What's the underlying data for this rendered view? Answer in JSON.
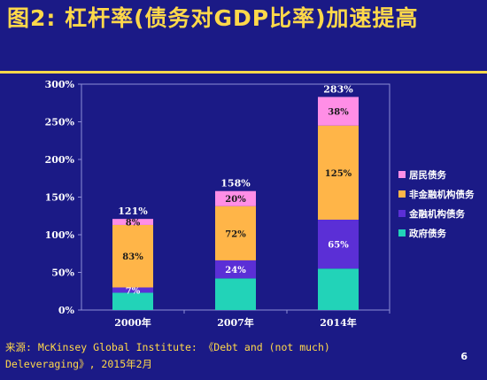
{
  "slide": {
    "title": "图2:  杠杆率(债务对GDP比率)加速提高",
    "footnote_line1": "来源: McKinsey Global Institute: 《Debt and (not much)",
    "footnote_line2": "Deleveraging》, 2015年2月",
    "page_number": "6"
  },
  "chart_data": {
    "type": "bar",
    "stacked": true,
    "title": "",
    "xlabel": "",
    "ylabel": "",
    "categories": [
      "2000年",
      "2007年",
      "2014年"
    ],
    "ylim": [
      0,
      300
    ],
    "yticks": [
      "0%",
      "50%",
      "100%",
      "150%",
      "200%",
      "250%",
      "300%"
    ],
    "totals": [
      "121%",
      "158%",
      "283%"
    ],
    "series": [
      {
        "name": "政府债务",
        "color": "#22d3b8",
        "values": [
          23,
          42,
          55
        ],
        "labels": [
          "",
          "",
          ""
        ]
      },
      {
        "name": "金融机构债务",
        "color": "#5b2fd6",
        "values": [
          7,
          24,
          65
        ],
        "labels": [
          "7%",
          "24%",
          "65%"
        ]
      },
      {
        "name": "非金融机构债务",
        "color": "#ffb548",
        "values": [
          83,
          72,
          125
        ],
        "labels": [
          "83%",
          "72%",
          "125%"
        ]
      },
      {
        "name": "居民债务",
        "color": "#ff8ee6",
        "values": [
          8,
          20,
          38
        ],
        "labels": [
          "8%",
          "20%",
          "38%"
        ]
      }
    ],
    "legend_position": "right",
    "grid": false
  }
}
